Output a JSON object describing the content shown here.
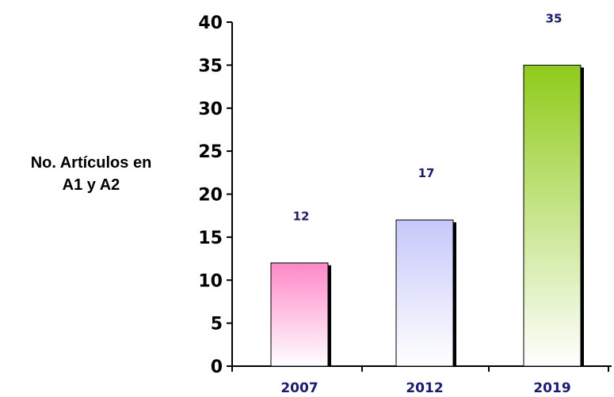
{
  "chart_data": {
    "type": "bar",
    "categories": [
      "2007",
      "2012",
      "2019"
    ],
    "values": [
      12,
      17,
      35
    ],
    "data_labels": [
      "12",
      "17",
      "35"
    ],
    "ylabel_lines": [
      "No. Artículos en",
      "A1 y A2"
    ],
    "title": "",
    "xlabel": "",
    "ylim": [
      0,
      40
    ],
    "yticks": [
      0,
      5,
      10,
      15,
      20,
      25,
      30,
      35,
      40
    ],
    "grid": false,
    "legend": "none",
    "bar_colors": [
      {
        "top": "#ff88c8",
        "bottom": "#ffffff"
      },
      {
        "top": "#c6c8fa",
        "bottom": "#ffffff"
      },
      {
        "top": "#8fcb1a",
        "bottom": "#ffffff"
      }
    ],
    "label_color": "#1a1a7a",
    "axis_color": "#000000"
  }
}
